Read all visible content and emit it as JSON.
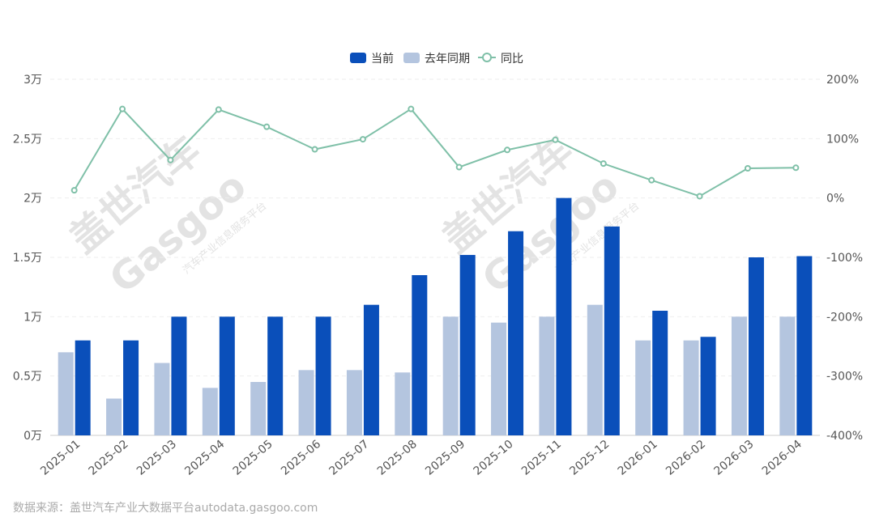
{
  "chart_data": {
    "type": "bar",
    "categories": [
      "2025-01",
      "2025-02",
      "2025-03",
      "2025-04",
      "2025-05",
      "2025-06",
      "2025-07",
      "2025-08",
      "2025-09",
      "2025-10",
      "2025-11",
      "2025-12",
      "2026-01",
      "2026-02",
      "2026-03",
      "2026-04"
    ],
    "series": [
      {
        "name": "当前",
        "type": "bar",
        "axis": "left",
        "color": "#0a4fba",
        "values": [
          8000,
          8000,
          10000,
          10000,
          10000,
          10000,
          11000,
          13500,
          15200,
          17200,
          20000,
          17600,
          10500,
          8300,
          15000,
          15100
        ]
      },
      {
        "name": "去年同期",
        "type": "bar",
        "axis": "left",
        "color": "#b4c5df",
        "values": [
          7000,
          3100,
          6100,
          4000,
          4500,
          5500,
          5500,
          5300,
          10000,
          9500,
          10000,
          11000,
          8000,
          8000,
          10000,
          10000
        ]
      },
      {
        "name": "同比",
        "type": "line",
        "axis": "right",
        "color": "#7fc0a8",
        "values": [
          13,
          150,
          64,
          149,
          120,
          82,
          99,
          150,
          52,
          81,
          98,
          58,
          30,
          3,
          50,
          51
        ]
      }
    ],
    "left_axis": {
      "ticks": [
        "0万",
        "0.5万",
        "1万",
        "1.5万",
        "2万",
        "2.5万",
        "3万"
      ],
      "range": [
        0,
        30000
      ]
    },
    "right_axis": {
      "ticks": [
        "-400%",
        "-300%",
        "-200%",
        "-100%",
        "0%",
        "100%",
        "200%"
      ],
      "range": [
        -400,
        200
      ]
    },
    "legend_position": "top-center",
    "grid": true
  },
  "source_text": "数据来源：盖世汽车产业大数据平台autodata.gasgoo.com",
  "watermark": {
    "brand": "盖世汽车",
    "logo": "Gasgoo",
    "subtitle": "汽车产业信息服务平台"
  }
}
